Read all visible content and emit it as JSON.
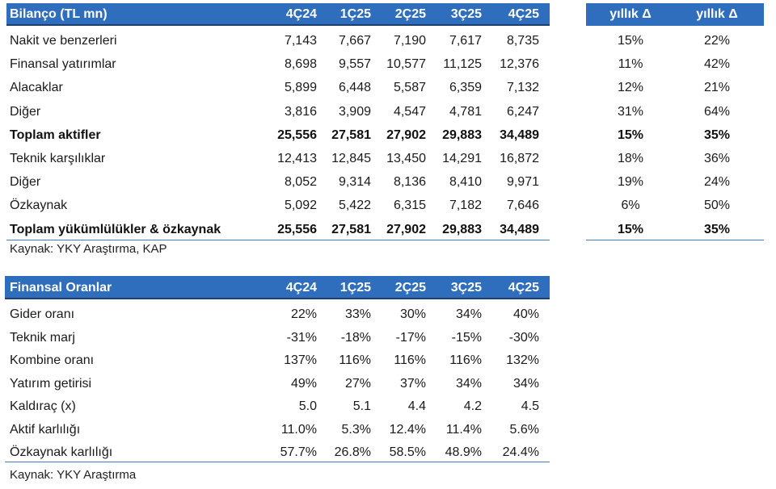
{
  "balance": {
    "title": "Bilanço (TL mn)",
    "periods": [
      "4Ç24",
      "1Ç25",
      "2Ç25",
      "3Ç25",
      "4Ç25"
    ],
    "change_headers": [
      "yıllık Δ",
      "yıllık Δ"
    ],
    "rows": [
      {
        "label": "Nakit ve benzerleri",
        "values": [
          "7,143",
          "7,667",
          "7,190",
          "7,617",
          "8,735"
        ],
        "changes": [
          "15%",
          "22%"
        ],
        "bold": false
      },
      {
        "label": "Finansal yatırımlar",
        "values": [
          "8,698",
          "9,557",
          "10,577",
          "11,125",
          "12,376"
        ],
        "changes": [
          "11%",
          "42%"
        ],
        "bold": false
      },
      {
        "label": "Alacaklar",
        "values": [
          "5,899",
          "6,448",
          "5,587",
          "6,359",
          "7,132"
        ],
        "changes": [
          "12%",
          "21%"
        ],
        "bold": false
      },
      {
        "label": "Diğer",
        "values": [
          "3,816",
          "3,909",
          "4,547",
          "4,781",
          "6,247"
        ],
        "changes": [
          "31%",
          "64%"
        ],
        "bold": false
      },
      {
        "label": "Toplam aktifler",
        "values": [
          "25,556",
          "27,581",
          "27,902",
          "29,883",
          "34,489"
        ],
        "changes": [
          "15%",
          "35%"
        ],
        "bold": true
      },
      {
        "label": "Teknik karşılıklar",
        "values": [
          "12,413",
          "12,845",
          "13,450",
          "14,291",
          "16,872"
        ],
        "changes": [
          "18%",
          "36%"
        ],
        "bold": false
      },
      {
        "label": "Diğer",
        "values": [
          "8,052",
          "9,314",
          "8,136",
          "8,410",
          "9,971"
        ],
        "changes": [
          "19%",
          "24%"
        ],
        "bold": false
      },
      {
        "label": "Özkaynak",
        "values": [
          "5,092",
          "5,422",
          "6,315",
          "7,182",
          "7,646"
        ],
        "changes": [
          "6%",
          "50%"
        ],
        "bold": false
      },
      {
        "label": "Toplam yükümlülükler & özkaynak",
        "values": [
          "25,556",
          "27,581",
          "27,902",
          "29,883",
          "34,489"
        ],
        "changes": [
          "15%",
          "35%"
        ],
        "bold": true
      }
    ],
    "source": "Kaynak: YKY Araştırma, KAP"
  },
  "ratios": {
    "title": "Finansal Oranlar",
    "periods": [
      "4Ç24",
      "1Ç25",
      "2Ç25",
      "3Ç25",
      "4Ç25"
    ],
    "rows": [
      {
        "label": "Gider oranı",
        "values": [
          "22%",
          "33%",
          "30%",
          "34%",
          "40%"
        ]
      },
      {
        "label": "Teknik marj",
        "values": [
          "-31%",
          "-18%",
          "-17%",
          "-15%",
          "-30%"
        ]
      },
      {
        "label": "Kombine oranı",
        "values": [
          "137%",
          "116%",
          "116%",
          "116%",
          "132%"
        ]
      },
      {
        "label": "Yatırım getirisi",
        "values": [
          "49%",
          "27%",
          "37%",
          "34%",
          "34%"
        ]
      },
      {
        "label": "Kaldıraç (x)",
        "values": [
          "5.0",
          "5.1",
          "4.4",
          "4.2",
          "4.5"
        ]
      },
      {
        "label": "Aktif karlılığı",
        "values": [
          "11.0%",
          "5.3%",
          "12.4%",
          "11.4%",
          "5.6%"
        ]
      },
      {
        "label": "Özkaynak karlılığı",
        "values": [
          "57.7%",
          "26.8%",
          "58.5%",
          "48.9%",
          "24.4%"
        ]
      }
    ],
    "source": "Kaynak: YKY Araştırma"
  },
  "colors": {
    "header_bg": "#2f6ebd",
    "rule": "#3d7cc9",
    "header_text": "#ffffff"
  }
}
